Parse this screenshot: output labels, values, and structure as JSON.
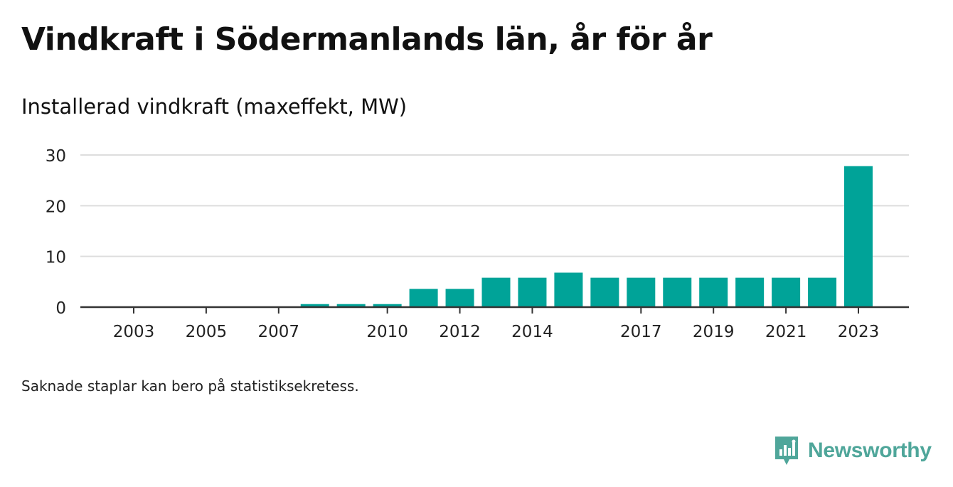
{
  "title": "Vindkraft i Södermanlands län, år för år",
  "subtitle": "Installerad vindkraft (maxeffekt, MW)",
  "footnote": "Saknade staplar kan bero på statistiksekretess.",
  "brand": {
    "name": "Newsworthy",
    "icon": "newsworthy-logo-icon"
  },
  "colors": {
    "bar": "#00a398",
    "grid": "#dddddd",
    "axis": "#333333",
    "brand": "#4fa69a"
  },
  "chart_data": {
    "type": "bar",
    "categories": [
      "2003",
      "2004",
      "2005",
      "2006",
      "2007",
      "2008",
      "2009",
      "2010",
      "2011",
      "2012",
      "2013",
      "2014",
      "2015",
      "2016",
      "2017",
      "2018",
      "2019",
      "2020",
      "2021",
      "2022",
      "2023"
    ],
    "values": [
      0,
      0,
      0,
      0,
      0,
      0.6,
      0.6,
      0.6,
      3.6,
      3.6,
      5.8,
      5.8,
      6.8,
      5.8,
      5.8,
      5.8,
      5.8,
      5.8,
      5.8,
      5.8,
      27.8
    ],
    "x_tick_labels": [
      "2003",
      "2005",
      "2007",
      "2010",
      "2012",
      "2014",
      "2017",
      "2019",
      "2021",
      "2023"
    ],
    "y_ticks": [
      0,
      10,
      20,
      30
    ],
    "ylim": [
      0,
      30
    ],
    "xlabel": "",
    "ylabel": "",
    "grid": true,
    "legend": "none"
  }
}
